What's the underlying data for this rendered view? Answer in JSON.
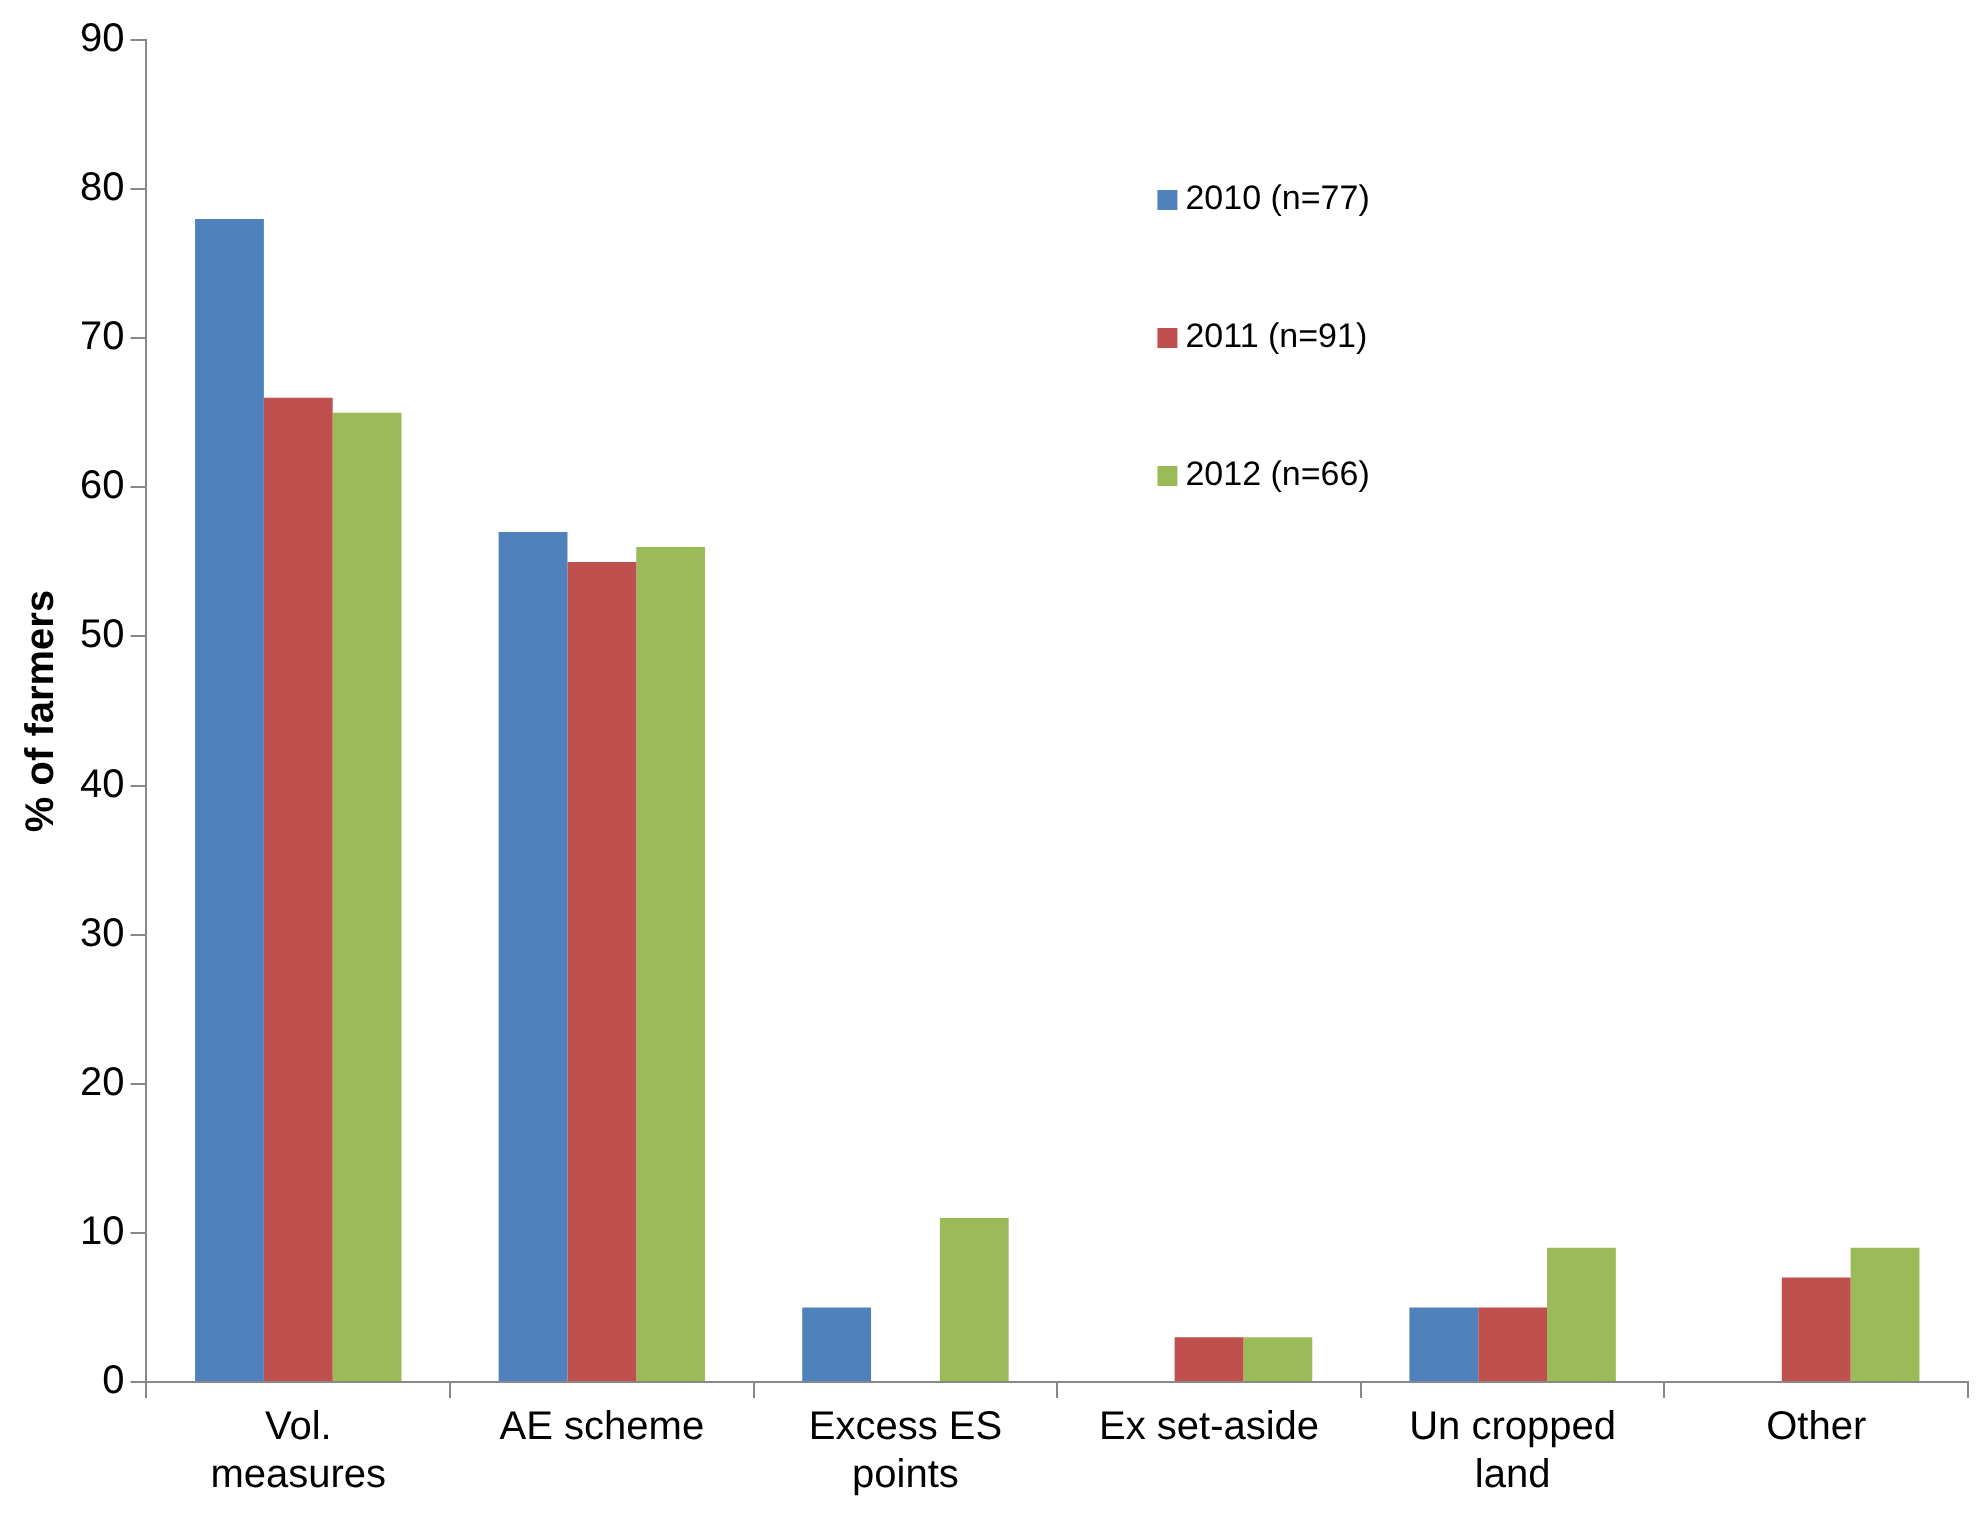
{
  "chart_data": {
    "type": "bar",
    "ylabel": "% of farmers",
    "categories": [
      "Vol. measures",
      "AE scheme",
      "Excess ES points",
      "Ex set-aside",
      "Un cropped land",
      "Other"
    ],
    "series": [
      {
        "name": "2010 (n=77)",
        "color": "#4f81bd",
        "values": [
          78,
          57,
          5,
          0,
          5,
          0
        ]
      },
      {
        "name": "2011 (n=91)",
        "color": "#c0504d",
        "values": [
          66,
          55,
          0,
          3,
          5,
          7
        ]
      },
      {
        "name": "2012 (n=66)",
        "color": "#9bbb59",
        "values": [
          65,
          56,
          11,
          3,
          9,
          9
        ]
      }
    ],
    "ylim": [
      0,
      90
    ],
    "yticks": [
      0,
      10,
      20,
      30,
      40,
      50,
      60,
      70,
      80,
      90
    ],
    "grid": false,
    "legend": "top right"
  }
}
